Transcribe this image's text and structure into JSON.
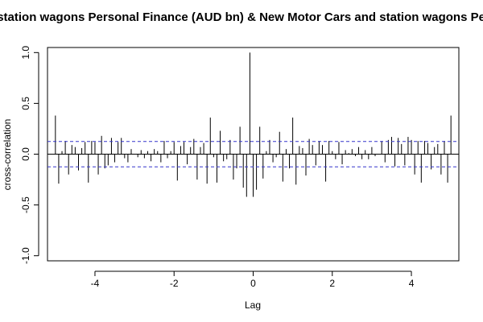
{
  "chart_data": {
    "type": "bar",
    "title": "d station wagons Personal Finance (AUD bn) & New Motor Cars and station wagons Pers",
    "xlabel": "Lag",
    "ylabel": "cross-correlation",
    "xlim": [
      -5.2,
      5.2
    ],
    "ylim": [
      -1.05,
      1.05
    ],
    "x_ticks": [
      -4,
      -2,
      0,
      2,
      4
    ],
    "x_tick_labels": [
      "-4",
      "-2",
      "0",
      "2",
      "4"
    ],
    "y_ticks": [
      -1.0,
      -0.5,
      0.0,
      0.5,
      1.0
    ],
    "y_tick_labels": [
      "-1.0",
      "-0.5",
      "0.0",
      "0.5",
      "1.0"
    ],
    "ci_bounds": [
      0.125,
      -0.125
    ],
    "x": [
      -5.0,
      -4.9167,
      -4.8333,
      -4.75,
      -4.6667,
      -4.5833,
      -4.5,
      -4.4167,
      -4.3333,
      -4.25,
      -4.1667,
      -4.0833,
      -4.0,
      -3.9167,
      -3.8333,
      -3.75,
      -3.6667,
      -3.5833,
      -3.5,
      -3.4167,
      -3.3333,
      -3.25,
      -3.1667,
      -3.0833,
      -3.0,
      -2.9167,
      -2.8333,
      -2.75,
      -2.6667,
      -2.5833,
      -2.5,
      -2.4167,
      -2.3333,
      -2.25,
      -2.1667,
      -2.0833,
      -2.0,
      -1.9167,
      -1.8333,
      -1.75,
      -1.6667,
      -1.5833,
      -1.5,
      -1.4167,
      -1.3333,
      -1.25,
      -1.1667,
      -1.0833,
      -1.0,
      -0.9167,
      -0.8333,
      -0.75,
      -0.6667,
      -0.5833,
      -0.5,
      -0.4167,
      -0.3333,
      -0.25,
      -0.1667,
      -0.0833,
      0.0,
      0.0833,
      0.1667,
      0.25,
      0.3333,
      0.4167,
      0.5,
      0.5833,
      0.6667,
      0.75,
      0.8333,
      0.9167,
      1.0,
      1.0833,
      1.1667,
      1.25,
      1.3333,
      1.4167,
      1.5,
      1.5833,
      1.6667,
      1.75,
      1.8333,
      1.9167,
      2.0,
      2.0833,
      2.1667,
      2.25,
      2.3333,
      2.4167,
      2.5,
      2.5833,
      2.6667,
      2.75,
      2.8333,
      2.9167,
      3.0,
      3.0833,
      3.1667,
      3.25,
      3.3333,
      3.4167,
      3.5,
      3.5833,
      3.6667,
      3.75,
      3.8333,
      3.9167,
      4.0,
      4.0833,
      4.1667,
      4.25,
      4.3333,
      4.4167,
      4.5,
      4.5833,
      4.6667,
      4.75,
      4.8333,
      4.9167,
      5.0
    ],
    "values": [
      0.38,
      -0.29,
      0.03,
      0.13,
      -0.2,
      0.09,
      0.07,
      -0.16,
      0.06,
      0.12,
      -0.28,
      0.13,
      0.12,
      -0.2,
      0.18,
      -0.14,
      -0.11,
      0.16,
      -0.08,
      0.12,
      0.16,
      -0.04,
      -0.08,
      0.05,
      0.0,
      -0.03,
      0.04,
      -0.04,
      0.03,
      -0.07,
      0.05,
      0.03,
      -0.08,
      0.13,
      -0.04,
      0.03,
      0.12,
      -0.26,
      0.08,
      0.12,
      -0.1,
      0.07,
      0.15,
      -0.25,
      0.07,
      0.11,
      -0.29,
      0.36,
      -0.03,
      -0.28,
      0.23,
      -0.07,
      -0.05,
      0.14,
      -0.25,
      -0.14,
      0.27,
      -0.33,
      -0.42,
      1.0,
      -0.42,
      -0.35,
      0.27,
      -0.24,
      0.03,
      0.14,
      -0.08,
      -0.03,
      0.22,
      -0.27,
      0.05,
      -0.14,
      0.36,
      -0.3,
      0.08,
      0.06,
      -0.21,
      0.15,
      0.09,
      -0.11,
      0.13,
      0.09,
      -0.27,
      0.13,
      0.03,
      -0.05,
      0.12,
      -0.1,
      0.04,
      0.01,
      0.05,
      -0.02,
      0.07,
      -0.05,
      0.04,
      -0.05,
      0.07,
      -0.02,
      0.0,
      0.13,
      -0.08,
      0.14,
      0.17,
      -0.12,
      0.16,
      0.1,
      -0.11,
      0.17,
      0.14,
      -0.2,
      0.13,
      -0.28,
      0.13,
      0.11,
      -0.15,
      0.07,
      0.1,
      -0.2,
      0.13,
      -0.28,
      0.38
    ]
  }
}
